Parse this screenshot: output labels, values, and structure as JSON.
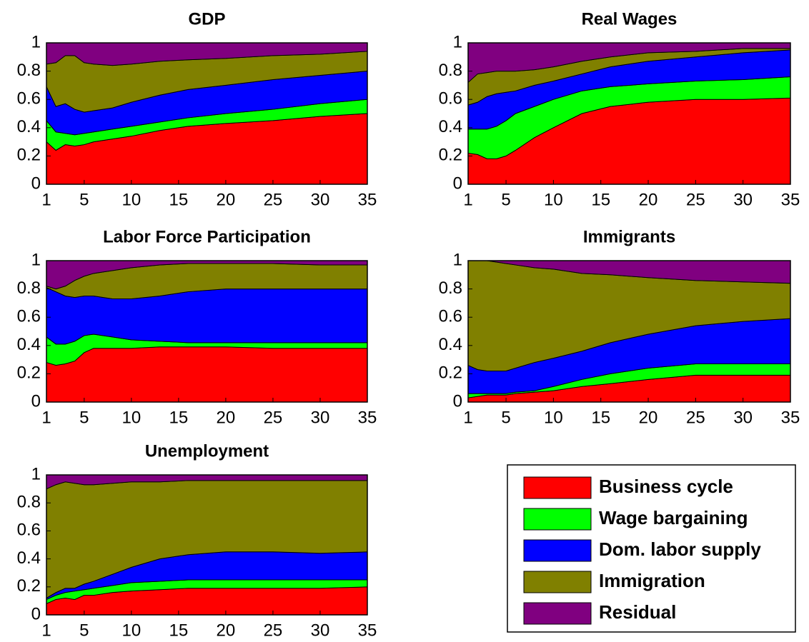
{
  "chart_data": [
    {
      "type": "area",
      "title": "GDP",
      "x": [
        1,
        2,
        3,
        4,
        5,
        6,
        8,
        10,
        13,
        16,
        20,
        25,
        30,
        35
      ],
      "xlim": [
        1,
        35
      ],
      "ylim": [
        0,
        1
      ],
      "xticks": [
        1,
        5,
        10,
        15,
        20,
        25,
        30,
        35
      ],
      "yticks": [
        0,
        0.2,
        0.4,
        0.6,
        0.8,
        1
      ],
      "series": [
        {
          "name": "Business cycle",
          "color": "#ff0000",
          "values": [
            0.3,
            0.24,
            0.28,
            0.27,
            0.28,
            0.3,
            0.32,
            0.34,
            0.38,
            0.41,
            0.43,
            0.45,
            0.48,
            0.5
          ]
        },
        {
          "name": "Wage bargaining",
          "color": "#00ff00",
          "values": [
            0.15,
            0.13,
            0.08,
            0.08,
            0.08,
            0.07,
            0.07,
            0.07,
            0.06,
            0.06,
            0.07,
            0.08,
            0.09,
            0.1
          ]
        },
        {
          "name": "Dom. labor supply",
          "color": "#0000ff",
          "values": [
            0.24,
            0.18,
            0.21,
            0.18,
            0.15,
            0.15,
            0.15,
            0.17,
            0.19,
            0.2,
            0.2,
            0.21,
            0.2,
            0.2
          ]
        },
        {
          "name": "Immigration",
          "color": "#808000",
          "values": [
            0.16,
            0.31,
            0.34,
            0.38,
            0.35,
            0.33,
            0.3,
            0.27,
            0.24,
            0.21,
            0.19,
            0.17,
            0.15,
            0.14
          ]
        },
        {
          "name": "Residual",
          "color": "#800080",
          "values": [
            0.15,
            0.14,
            0.09,
            0.09,
            0.14,
            0.15,
            0.16,
            0.15,
            0.13,
            0.12,
            0.11,
            0.09,
            0.08,
            0.06
          ]
        }
      ]
    },
    {
      "type": "area",
      "title": "Real Wages",
      "x": [
        1,
        2,
        3,
        4,
        5,
        6,
        8,
        10,
        13,
        16,
        20,
        25,
        30,
        35
      ],
      "xlim": [
        1,
        35
      ],
      "ylim": [
        0,
        1
      ],
      "xticks": [
        1,
        5,
        10,
        15,
        20,
        25,
        30,
        35
      ],
      "yticks": [
        0,
        0.2,
        0.4,
        0.6,
        0.8,
        1
      ],
      "series": [
        {
          "name": "Business cycle",
          "color": "#ff0000",
          "values": [
            0.22,
            0.21,
            0.18,
            0.18,
            0.2,
            0.24,
            0.33,
            0.4,
            0.5,
            0.55,
            0.58,
            0.6,
            0.6,
            0.61
          ]
        },
        {
          "name": "Wage bargaining",
          "color": "#00ff00",
          "values": [
            0.17,
            0.18,
            0.21,
            0.23,
            0.25,
            0.26,
            0.22,
            0.2,
            0.16,
            0.14,
            0.13,
            0.13,
            0.14,
            0.15
          ]
        },
        {
          "name": "Dom. labor supply",
          "color": "#0000ff",
          "values": [
            0.17,
            0.19,
            0.23,
            0.23,
            0.2,
            0.16,
            0.15,
            0.13,
            0.12,
            0.14,
            0.16,
            0.17,
            0.19,
            0.19
          ]
        },
        {
          "name": "Immigration",
          "color": "#808000",
          "values": [
            0.16,
            0.2,
            0.17,
            0.16,
            0.15,
            0.14,
            0.11,
            0.1,
            0.09,
            0.07,
            0.06,
            0.04,
            0.03,
            0.01
          ]
        },
        {
          "name": "Residual",
          "color": "#800080",
          "values": [
            0.28,
            0.22,
            0.21,
            0.2,
            0.2,
            0.2,
            0.19,
            0.17,
            0.13,
            0.1,
            0.07,
            0.06,
            0.04,
            0.04
          ]
        }
      ]
    },
    {
      "type": "area",
      "title": "Labor Force Participation",
      "x": [
        1,
        2,
        3,
        4,
        5,
        6,
        8,
        10,
        13,
        16,
        20,
        25,
        30,
        35
      ],
      "xlim": [
        1,
        35
      ],
      "ylim": [
        0,
        1
      ],
      "xticks": [
        1,
        5,
        10,
        15,
        20,
        25,
        30,
        35
      ],
      "yticks": [
        0,
        0.2,
        0.4,
        0.6,
        0.8,
        1
      ],
      "series": [
        {
          "name": "Business cycle",
          "color": "#ff0000",
          "values": [
            0.28,
            0.26,
            0.27,
            0.29,
            0.35,
            0.38,
            0.38,
            0.38,
            0.39,
            0.39,
            0.39,
            0.38,
            0.38,
            0.38
          ]
        },
        {
          "name": "Wage bargaining",
          "color": "#00ff00",
          "values": [
            0.18,
            0.15,
            0.14,
            0.14,
            0.12,
            0.1,
            0.08,
            0.06,
            0.04,
            0.03,
            0.03,
            0.04,
            0.04,
            0.04
          ]
        },
        {
          "name": "Dom. labor supply",
          "color": "#0000ff",
          "values": [
            0.35,
            0.37,
            0.34,
            0.31,
            0.28,
            0.27,
            0.27,
            0.29,
            0.32,
            0.36,
            0.38,
            0.38,
            0.38,
            0.38
          ]
        },
        {
          "name": "Immigration",
          "color": "#808000",
          "values": [
            0.01,
            0.02,
            0.07,
            0.12,
            0.14,
            0.16,
            0.2,
            0.22,
            0.22,
            0.2,
            0.18,
            0.18,
            0.17,
            0.17
          ]
        },
        {
          "name": "Residual",
          "color": "#800080",
          "values": [
            0.18,
            0.2,
            0.18,
            0.14,
            0.11,
            0.09,
            0.07,
            0.05,
            0.03,
            0.02,
            0.02,
            0.02,
            0.03,
            0.03
          ]
        }
      ]
    },
    {
      "type": "area",
      "title": "Immigrants",
      "x": [
        1,
        2,
        3,
        4,
        5,
        6,
        8,
        10,
        13,
        16,
        20,
        25,
        30,
        35
      ],
      "xlim": [
        1,
        35
      ],
      "ylim": [
        0,
        1
      ],
      "xticks": [
        1,
        5,
        10,
        15,
        20,
        25,
        30,
        35
      ],
      "yticks": [
        0,
        0.2,
        0.4,
        0.6,
        0.8,
        1
      ],
      "series": [
        {
          "name": "Business cycle",
          "color": "#ff0000",
          "values": [
            0.03,
            0.04,
            0.05,
            0.05,
            0.05,
            0.06,
            0.07,
            0.08,
            0.11,
            0.13,
            0.16,
            0.19,
            0.19,
            0.19
          ]
        },
        {
          "name": "Wage bargaining",
          "color": "#00ff00",
          "values": [
            0.03,
            0.02,
            0.01,
            0.01,
            0.01,
            0.01,
            0.01,
            0.03,
            0.05,
            0.07,
            0.08,
            0.08,
            0.08,
            0.08
          ]
        },
        {
          "name": "Dom. labor supply",
          "color": "#0000ff",
          "values": [
            0.2,
            0.17,
            0.16,
            0.16,
            0.16,
            0.17,
            0.2,
            0.2,
            0.2,
            0.22,
            0.24,
            0.27,
            0.3,
            0.32
          ]
        },
        {
          "name": "Immigration",
          "color": "#808000",
          "values": [
            0.74,
            0.77,
            0.78,
            0.77,
            0.76,
            0.73,
            0.67,
            0.63,
            0.55,
            0.48,
            0.4,
            0.32,
            0.28,
            0.25
          ]
        },
        {
          "name": "Residual",
          "color": "#800080",
          "values": [
            0,
            0,
            0,
            0.01,
            0.02,
            0.03,
            0.05,
            0.06,
            0.09,
            0.1,
            0.12,
            0.14,
            0.15,
            0.16
          ]
        }
      ]
    },
    {
      "type": "area",
      "title": "Unemployment",
      "x": [
        1,
        2,
        3,
        4,
        5,
        6,
        8,
        10,
        13,
        16,
        20,
        25,
        30,
        35
      ],
      "xlim": [
        1,
        35
      ],
      "ylim": [
        0,
        1
      ],
      "xticks": [
        1,
        5,
        10,
        15,
        20,
        25,
        30,
        35
      ],
      "yticks": [
        0,
        0.2,
        0.4,
        0.6,
        0.8,
        1
      ],
      "series": [
        {
          "name": "Business cycle",
          "color": "#ff0000",
          "values": [
            0.08,
            0.11,
            0.12,
            0.11,
            0.14,
            0.14,
            0.16,
            0.17,
            0.18,
            0.19,
            0.19,
            0.19,
            0.19,
            0.2
          ]
        },
        {
          "name": "Wage bargaining",
          "color": "#00ff00",
          "values": [
            0.03,
            0.03,
            0.04,
            0.06,
            0.04,
            0.05,
            0.05,
            0.06,
            0.06,
            0.06,
            0.06,
            0.06,
            0.06,
            0.05
          ]
        },
        {
          "name": "Dom. labor supply",
          "color": "#0000ff",
          "values": [
            0.01,
            0.02,
            0.03,
            0.02,
            0.04,
            0.05,
            0.08,
            0.11,
            0.16,
            0.18,
            0.2,
            0.2,
            0.19,
            0.2
          ]
        },
        {
          "name": "Immigration",
          "color": "#808000",
          "values": [
            0.78,
            0.77,
            0.76,
            0.75,
            0.71,
            0.69,
            0.65,
            0.61,
            0.55,
            0.53,
            0.51,
            0.51,
            0.52,
            0.51
          ]
        },
        {
          "name": "Residual",
          "color": "#800080",
          "values": [
            0.1,
            0.07,
            0.05,
            0.06,
            0.07,
            0.07,
            0.06,
            0.05,
            0.05,
            0.04,
            0.04,
            0.04,
            0.04,
            0.04
          ]
        }
      ]
    }
  ]
}
